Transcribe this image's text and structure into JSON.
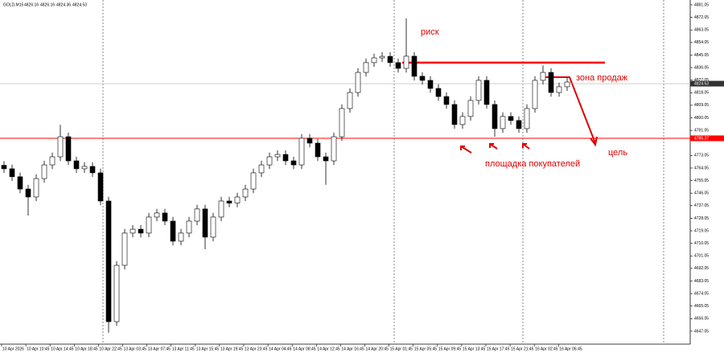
{
  "chart_data": {
    "type": "candlestick",
    "symbol": "GOLD,M15",
    "header_ohlc": [
      4826.16,
      4826.16,
      4824.36,
      4824.53
    ],
    "x_labels": [
      "10 Apr 2026",
      "10 Apr 10:45",
      "10 Apr 14:45",
      "10 Apr 18:45",
      "10 Apr 22:45",
      "13 Apr 03:45",
      "13 Apr 07:45",
      "13 Apr 11:45",
      "13 Apr 15:45",
      "13 Apr 19:45",
      "13 Apr 23:45",
      "14 Apr 04:45",
      "14 Apr 08:45",
      "14 Apr 12:45",
      "14 Apr 16:45",
      "14 Apr 20:45",
      "15 Apr 01:45",
      "15 Apr 05:45",
      "15 Apr 09:45",
      "15 Apr 13:45",
      "15 Apr 17:45",
      "15 Apr 21:45",
      "16 Apr 02:45",
      "16 Apr 06:45"
    ],
    "open": [
      4766.0,
      4763.5,
      4757.8,
      4749.0,
      4743.3,
      4756.5,
      4766.3,
      4772.1,
      4786.5,
      4769.2,
      4763.5,
      4765.2,
      4760.6,
      4740.4,
      4653.9,
      4694.3,
      4717.4,
      4720.2,
      4717.4,
      4728.9,
      4731.8,
      4726.0,
      4711.6,
      4717.4,
      4726.0,
      4734.7,
      4714.5,
      4728.9,
      4740.4,
      4738.9,
      4743.3,
      4749.0,
      4760.6,
      4766.3,
      4772.1,
      4773.8,
      4769.2,
      4766.3,
      4785.4,
      4781.9,
      4772.1,
      4769.2,
      4786.5,
      4806.7,
      4818.2,
      4832.6,
      4839.6,
      4843.0,
      4844.1,
      4839.6,
      4835.5,
      4844.2,
      4829.8,
      4826.9,
      4821.1,
      4815.3,
      4809.6,
      4795.2,
      4801.0,
      4812.5,
      4826.9,
      4809.6,
      4792.3,
      4801.0,
      4798.1,
      4792.3,
      4806.7,
      4826.9,
      4832.6,
      4818.2,
      4822.3
    ],
    "high": [
      4769.0,
      4766.5,
      4760.8,
      4752.0,
      4759.5,
      4769.3,
      4775.1,
      4795.0,
      4789.5,
      4772.2,
      4768.2,
      4768.2,
      4763.6,
      4743.4,
      4697.3,
      4720.4,
      4723.2,
      4723.2,
      4731.9,
      4734.8,
      4734.8,
      4729.0,
      4720.4,
      4729.0,
      4737.7,
      4737.7,
      4731.9,
      4743.4,
      4743.4,
      4746.3,
      4752.0,
      4763.6,
      4769.3,
      4775.1,
      4776.8,
      4776.8,
      4772.2,
      4788.4,
      4788.4,
      4784.9,
      4775.1,
      4789.5,
      4809.7,
      4821.2,
      4835.6,
      4842.6,
      4846.0,
      4847.1,
      4847.1,
      4842.6,
      4871.3,
      4847.2,
      4832.8,
      4829.9,
      4824.1,
      4818.3,
      4812.6,
      4804.0,
      4815.5,
      4829.9,
      4829.9,
      4812.6,
      4804.0,
      4804.0,
      4801.1,
      4809.7,
      4829.9,
      4837.6,
      4835.6,
      4825.3,
      4828.7
    ],
    "low": [
      4760.5,
      4754.8,
      4746.0,
      4730.0,
      4740.3,
      4753.5,
      4763.3,
      4769.1,
      4766.2,
      4760.5,
      4760.5,
      4757.6,
      4737.4,
      4646.0,
      4650.9,
      4691.3,
      4714.4,
      4714.4,
      4714.4,
      4725.9,
      4723.0,
      4708.6,
      4708.6,
      4714.4,
      4723.0,
      4705.8,
      4711.5,
      4725.9,
      4735.9,
      4735.9,
      4740.3,
      4746.0,
      4757.6,
      4763.3,
      4769.1,
      4766.2,
      4763.3,
      4763.3,
      4778.9,
      4769.1,
      4752.0,
      4766.2,
      4783.5,
      4803.7,
      4815.2,
      4829.6,
      4836.6,
      4840.0,
      4836.6,
      4832.5,
      4832.5,
      4826.8,
      4823.9,
      4818.1,
      4812.3,
      4806.6,
      4792.2,
      4792.2,
      4798.0,
      4809.5,
      4806.6,
      4786.5,
      4789.3,
      4795.1,
      4789.3,
      4789.3,
      4803.7,
      4823.9,
      4815.2,
      4815.2,
      4819.3
    ],
    "close": [
      4763.5,
      4757.8,
      4749.0,
      4743.3,
      4756.5,
      4766.3,
      4772.1,
      4786.5,
      4769.2,
      4763.5,
      4765.2,
      4760.6,
      4740.4,
      4653.9,
      4694.3,
      4717.4,
      4720.2,
      4717.4,
      4728.9,
      4731.8,
      4726.0,
      4711.6,
      4717.4,
      4726.0,
      4734.7,
      4714.5,
      4728.9,
      4740.4,
      4738.9,
      4743.3,
      4749.0,
      4760.6,
      4766.3,
      4772.1,
      4773.8,
      4769.2,
      4766.3,
      4785.4,
      4781.9,
      4772.1,
      4769.2,
      4786.5,
      4806.7,
      4818.2,
      4832.6,
      4839.6,
      4843.0,
      4844.1,
      4839.6,
      4835.5,
      4844.2,
      4829.8,
      4826.9,
      4821.1,
      4815.3,
      4809.6,
      4795.2,
      4801.0,
      4812.5,
      4826.9,
      4809.6,
      4792.3,
      4801.0,
      4798.1,
      4792.3,
      4806.7,
      4826.9,
      4832.6,
      4818.2,
      4822.3,
      4825.7
    ],
    "up_color": "#ffffff",
    "down_color": "#000000",
    "ylim": [
      4637.8,
      4884.5
    ],
    "yticks": [
      4881.05,
      4872.05,
      4863.05,
      4854.05,
      4845.05,
      4836.05,
      4827.05,
      4818.05,
      4809.05,
      4800.05,
      4791.05,
      4773.05,
      4764.05,
      4755.05,
      4746.05,
      4737.05,
      4728.05,
      4719.05,
      4710.05,
      4701.05,
      4692.05,
      4683.05,
      4674.05,
      4665.05,
      4656.05,
      4647.05
    ],
    "current_price": 4824.53,
    "support_level": 4785.37,
    "risk_level": 4839.6,
    "line_color": "#ff0000",
    "annotations": {
      "risk": "риск",
      "sell_zone": "зона продаж",
      "target": "цель",
      "buyers_area": "площадка покупателей"
    }
  }
}
